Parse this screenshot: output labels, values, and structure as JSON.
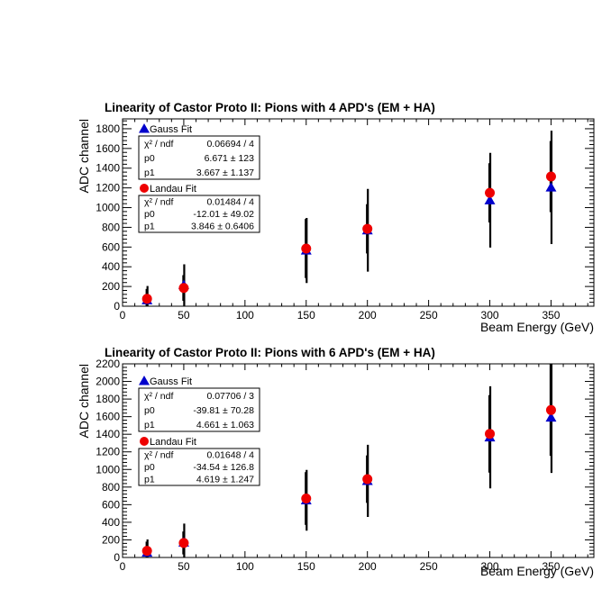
{
  "chart_data": [
    {
      "type": "scatter",
      "title": "Linearity of Castor Proto II: Pions with 4 APD's (EM + HA)",
      "xlabel": "Beam Energy (GeV)",
      "ylabel": "ADC channel",
      "xlim": [
        0,
        385
      ],
      "ylim": [
        0,
        1900
      ],
      "xticks": [
        0,
        50,
        100,
        150,
        200,
        250,
        300,
        350
      ],
      "yticks": [
        0,
        200,
        400,
        600,
        800,
        1000,
        1200,
        1400,
        1600,
        1800
      ],
      "series": [
        {
          "name": "Gauss Fit",
          "marker": "triangle",
          "color": "#0000cc",
          "x": [
            20,
            50,
            150,
            200,
            300,
            350
          ],
          "y": [
            60,
            215,
            565,
            770,
            1075,
            1205
          ],
          "yerr": [
            145,
            210,
            330,
            420,
            480,
            575
          ]
        },
        {
          "name": "Landau Fit",
          "marker": "circle",
          "color": "#ee0000",
          "x": [
            20,
            50,
            150,
            200,
            300,
            350
          ],
          "y": [
            75,
            185,
            585,
            785,
            1150,
            1315
          ],
          "yerr": [
            100,
            130,
            300,
            250,
            300,
            360
          ]
        }
      ],
      "stats": [
        {
          "header": "Gauss Fit",
          "rows": [
            {
              "label": "χ² / ndf",
              "value": "0.06694 / 4"
            },
            {
              "label": "p0",
              "value": "6.671 ±   123"
            },
            {
              "label": "p1",
              "value": "3.667 ± 1.137"
            }
          ]
        },
        {
          "header": "Landau Fit",
          "rows": [
            {
              "label": "χ² / ndf",
              "value": "0.01484 / 4"
            },
            {
              "label": "p0",
              "value": "-12.01 ± 49.02"
            },
            {
              "label": "p1",
              "value": "3.846 ± 0.6406"
            }
          ]
        }
      ]
    },
    {
      "type": "scatter",
      "title": "Linearity of Castor Proto II: Pions with 6 APD's (EM + HA)",
      "xlabel": "Beam Energy (GeV)",
      "ylabel": "ADC channel",
      "xlim": [
        0,
        385
      ],
      "ylim": [
        0,
        2200
      ],
      "xticks": [
        0,
        50,
        100,
        150,
        200,
        250,
        300,
        350
      ],
      "yticks": [
        0,
        200,
        400,
        600,
        800,
        1000,
        1200,
        1400,
        1600,
        1800,
        2000,
        2200
      ],
      "series": [
        {
          "name": "Gauss Fit",
          "marker": "triangle",
          "color": "#0000cc",
          "x": [
            20,
            50,
            150,
            200,
            300,
            350
          ],
          "y": [
            55,
            170,
            650,
            870,
            1365,
            1590
          ],
          "yerr": [
            150,
            215,
            345,
            410,
            580,
            630
          ]
        },
        {
          "name": "Landau Fit",
          "marker": "circle",
          "color": "#ee0000",
          "x": [
            20,
            50,
            150,
            200,
            300,
            350
          ],
          "y": [
            75,
            165,
            670,
            890,
            1405,
            1675
          ],
          "yerr": [
            105,
            130,
            300,
            270,
            440,
            520
          ]
        }
      ],
      "stats": [
        {
          "header": "Gauss Fit",
          "rows": [
            {
              "label": "χ² / ndf",
              "value": "0.07706 / 3"
            },
            {
              "label": "p0",
              "value": "-39.81 ± 70.28"
            },
            {
              "label": "p1",
              "value": "4.661 ± 1.063"
            }
          ]
        },
        {
          "header": "Landau Fit",
          "rows": [
            {
              "label": "χ² / ndf",
              "value": "0.01648 / 4"
            },
            {
              "label": "p0",
              "value": "-34.54 ± 126.8"
            },
            {
              "label": "p1",
              "value": "4.619 ± 1.247"
            }
          ]
        }
      ]
    }
  ]
}
